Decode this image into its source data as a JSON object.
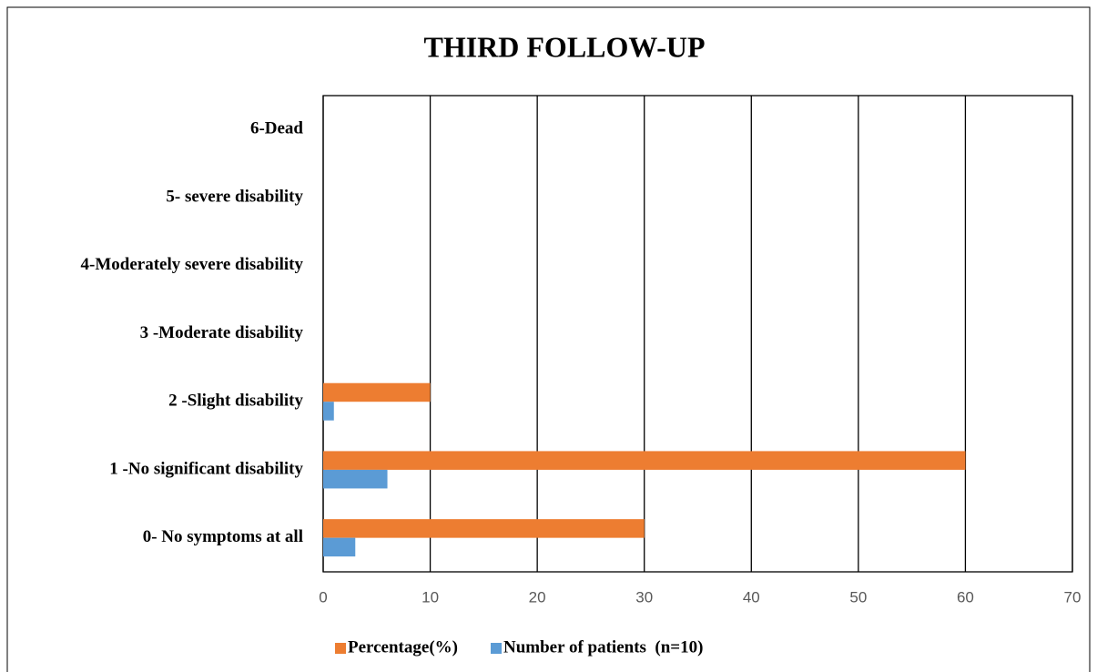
{
  "chart_data": {
    "type": "hbar",
    "title": "THIRD FOLLOW-UP",
    "categories": [
      "0- No symptoms at all",
      "1 -No significant disability",
      "2 -Slight disability",
      "3 -Moderate disability",
      "4-Moderately severe disability",
      "5- severe disability",
      "6-Dead"
    ],
    "series": [
      {
        "name": "Percentage(%)",
        "color": "#ED7D31",
        "values": [
          30,
          60,
          10,
          0,
          0,
          0,
          0
        ]
      },
      {
        "name": "Number of patients  (n=10)",
        "color": "#5B9BD5",
        "values": [
          3,
          6,
          1,
          0,
          0,
          0,
          0
        ]
      }
    ],
    "xlim": [
      0,
      70
    ],
    "xticks": [
      0,
      10,
      20,
      30,
      40,
      50,
      60,
      70
    ],
    "grid": true,
    "legend": "bottom"
  }
}
